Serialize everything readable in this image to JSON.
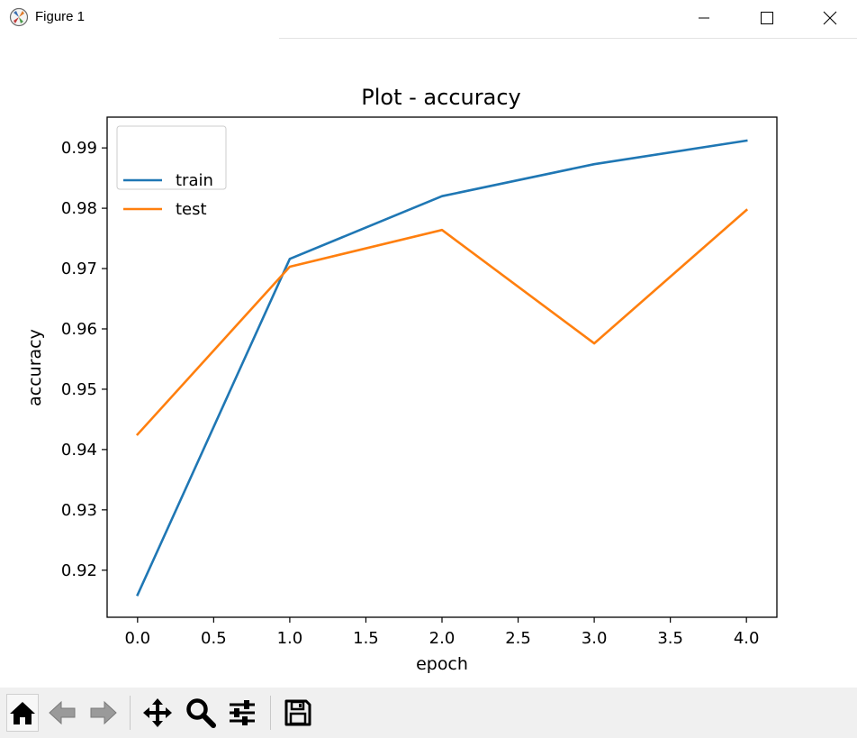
{
  "window": {
    "title": "Figure 1",
    "controls": [
      "minimize",
      "maximize",
      "close"
    ]
  },
  "toolbar": {
    "buttons": [
      {
        "name": "home",
        "icon": "home-icon"
      },
      {
        "name": "back",
        "icon": "arrow-left-icon"
      },
      {
        "name": "forward",
        "icon": "arrow-right-icon"
      },
      {
        "name": "pan",
        "icon": "move-icon"
      },
      {
        "name": "zoom",
        "icon": "magnifier-icon"
      },
      {
        "name": "configure-subplots",
        "icon": "sliders-icon"
      },
      {
        "name": "save",
        "icon": "floppy-disk-icon"
      }
    ]
  },
  "chart_data": {
    "type": "line",
    "title": "Plot - accuracy",
    "xlabel": "epoch",
    "ylabel": "accuracy",
    "x": [
      0,
      1,
      2,
      3,
      4
    ],
    "xlim": [
      -0.2,
      4.2
    ],
    "ylim": [
      0.9122,
      0.9951
    ],
    "xticks": [
      0.0,
      0.5,
      1.0,
      1.5,
      2.0,
      2.5,
      3.0,
      3.5,
      4.0
    ],
    "xtick_labels": [
      "0.0",
      "0.5",
      "1.0",
      "1.5",
      "2.0",
      "2.5",
      "3.0",
      "3.5",
      "4.0"
    ],
    "yticks": [
      0.92,
      0.93,
      0.94,
      0.95,
      0.96,
      0.97,
      0.98,
      0.99
    ],
    "ytick_labels": [
      "0.92",
      "0.93",
      "0.94",
      "0.95",
      "0.96",
      "0.97",
      "0.98",
      "0.99"
    ],
    "grid": false,
    "legend": "upper-left",
    "series": [
      {
        "name": "train",
        "color": "#1f77b4",
        "values": [
          0.9159,
          0.9716,
          0.982,
          0.9873,
          0.9912
        ]
      },
      {
        "name": "test",
        "color": "#ff7f0e",
        "values": [
          0.9425,
          0.9703,
          0.9764,
          0.9576,
          0.9797
        ]
      }
    ]
  }
}
